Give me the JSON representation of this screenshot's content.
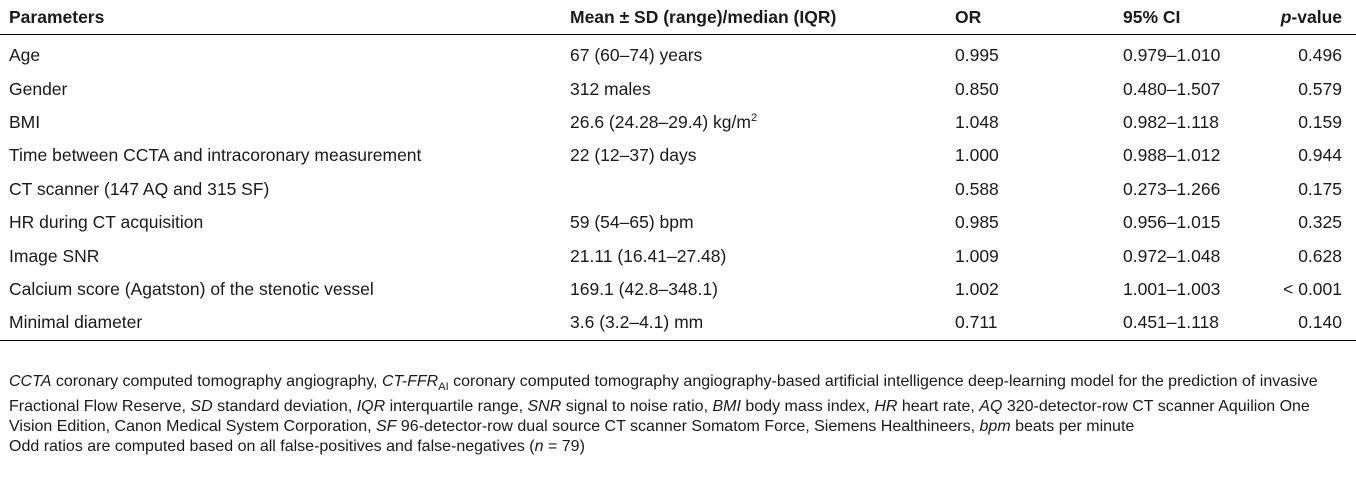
{
  "headers": {
    "parameters": "Parameters",
    "mean": "Mean ± SD (range)/median (IQR)",
    "or": "OR",
    "ci": "95% CI",
    "p_italic": "p",
    "p_rest": "-value"
  },
  "rows": [
    {
      "param": "Age",
      "mean": "67 (60–74) years",
      "mean_sup": "",
      "or": "0.995",
      "ci": "0.979–1.010",
      "p": "0.496"
    },
    {
      "param": "Gender",
      "mean": "312 males",
      "mean_sup": "",
      "or": "0.850",
      "ci": "0.480–1.507",
      "p": "0.579"
    },
    {
      "param": "BMI",
      "mean": "26.6 (24.28–29.4) kg/m",
      "mean_sup": "2",
      "or": "1.048",
      "ci": "0.982–1.118",
      "p": "0.159"
    },
    {
      "param": "Time between CCTA and intracoronary measurement",
      "mean": "22 (12–37) days",
      "mean_sup": "",
      "or": "1.000",
      "ci": "0.988–1.012",
      "p": "0.944"
    },
    {
      "param": "CT scanner (147 AQ and 315 SF)",
      "mean": "",
      "mean_sup": "",
      "or": "0.588",
      "ci": "0.273–1.266",
      "p": "0.175"
    },
    {
      "param": "HR during CT acquisition",
      "mean": "59 (54–65) bpm",
      "mean_sup": "",
      "or": "0.985",
      "ci": "0.956–1.015",
      "p": "0.325"
    },
    {
      "param": "Image SNR",
      "mean": "21.11 (16.41–27.48)",
      "mean_sup": "",
      "or": "1.009",
      "ci": "0.972–1.048",
      "p": "0.628"
    },
    {
      "param": "Calcium score (Agatston) of the stenotic vessel",
      "mean": "169.1 (42.8–348.1)",
      "mean_sup": "",
      "or": "1.002",
      "ci": "1.001–1.003",
      "p": "< 0.001"
    },
    {
      "param": "Minimal diameter",
      "mean": "3.6 (3.2–4.1) mm",
      "mean_sup": "",
      "or": "0.711",
      "ci": "0.451–1.118",
      "p": "0.140"
    }
  ],
  "footnote": {
    "segments": [
      {
        "i": "CCTA",
        "t": " coronary computed tomography angiography, "
      },
      {
        "i": "CT-FFR",
        "sub": "AI",
        "t": " coronary computed tomography angiography-based artificial intelligence deep-learning model for the prediction of invasive Fractional Flow Reserve, "
      },
      {
        "i": "SD",
        "t": " standard deviation, "
      },
      {
        "i": "IQR",
        "t": " interquartile range, "
      },
      {
        "i": "SNR",
        "t": " signal to noise ratio, "
      },
      {
        "i": "BMI",
        "t": " body mass index, "
      },
      {
        "i": "HR",
        "t": " heart rate, "
      },
      {
        "i": "AQ",
        "t": " 320-detector-row CT scanner Aquilion One Vision Edition, Canon Medical System Corporation, "
      },
      {
        "i": "SF",
        "t": " 96-detector-row dual source CT scanner Somatom Force, Siemens Healthineers, "
      },
      {
        "i": "bpm",
        "t": " beats per minute"
      }
    ],
    "odds_pre": "Odd ratios are computed based on all false-positives and false-negatives (",
    "odds_n": "n",
    "odds_post": " = 79)"
  }
}
